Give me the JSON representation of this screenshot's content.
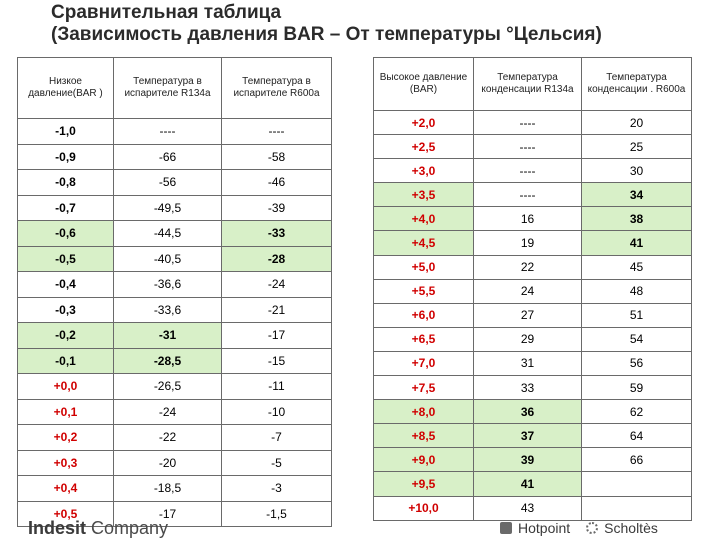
{
  "title": {
    "line1": "Сравнительная таблица",
    "line2": "(Зависимость давления BAR – От температуры °Цельсия)"
  },
  "left_table": {
    "headers": [
      "Низкое давление(BAR )",
      "Температура в испарителе R134a",
      "Температура в испарителе R600a"
    ],
    "rows": [
      {
        "p": "-1,0",
        "a": "----",
        "b": "----",
        "hl": ""
      },
      {
        "p": "-0,9",
        "a": "-66",
        "b": "-58",
        "hl": ""
      },
      {
        "p": "-0,8",
        "a": "-56",
        "b": "-46",
        "hl": ""
      },
      {
        "p": "-0,7",
        "a": "-49,5",
        "b": "-39",
        "hl": ""
      },
      {
        "p": "-0,6",
        "a": "-44,5",
        "b": "-33",
        "hl": "b"
      },
      {
        "p": "-0,5",
        "a": "-40,5",
        "b": "-28",
        "hl": "b"
      },
      {
        "p": "-0,4",
        "a": "-36,6",
        "b": "-24",
        "hl": ""
      },
      {
        "p": "-0,3",
        "a": "-33,6",
        "b": "-21",
        "hl": ""
      },
      {
        "p": "-0,2",
        "a": "-31",
        "b": "-17",
        "hl": "a"
      },
      {
        "p": "-0,1",
        "a": "-28,5",
        "b": "-15",
        "hl": "a"
      },
      {
        "p": "+0,0",
        "a": "-26,5",
        "b": "-11",
        "hl": ""
      },
      {
        "p": "+0,1",
        "a": "-24",
        "b": "-10",
        "hl": ""
      },
      {
        "p": "+0,2",
        "a": "-22",
        "b": "-7",
        "hl": ""
      },
      {
        "p": "+0,3",
        "a": "-20",
        "b": "-5",
        "hl": ""
      },
      {
        "p": "+0,4",
        "a": "-18,5",
        "b": "-3",
        "hl": ""
      },
      {
        "p": "+0,5",
        "a": "-17",
        "b": "-1,5",
        "hl": ""
      }
    ]
  },
  "right_table": {
    "headers": [
      "Высокое давление (BAR)",
      "Температура конденсации R134a",
      "Температура конденсации . R600a"
    ],
    "rows": [
      {
        "p": "+2,0",
        "a": "----",
        "b": "20",
        "hl": ""
      },
      {
        "p": "+2,5",
        "a": "----",
        "b": "25",
        "hl": ""
      },
      {
        "p": "+3,0",
        "a": "----",
        "b": "30",
        "hl": ""
      },
      {
        "p": "+3,5",
        "a": "----",
        "b": "34",
        "hl": "b"
      },
      {
        "p": "+4,0",
        "a": "16",
        "b": "38",
        "hl": "b"
      },
      {
        "p": "+4,5",
        "a": "19",
        "b": "41",
        "hl": "b"
      },
      {
        "p": "+5,0",
        "a": "22",
        "b": "45",
        "hl": ""
      },
      {
        "p": "+5,5",
        "a": "24",
        "b": "48",
        "hl": ""
      },
      {
        "p": "+6,0",
        "a": "27",
        "b": "51",
        "hl": ""
      },
      {
        "p": "+6,5",
        "a": "29",
        "b": "54",
        "hl": ""
      },
      {
        "p": "+7,0",
        "a": "31",
        "b": "56",
        "hl": ""
      },
      {
        "p": "+7,5",
        "a": "33",
        "b": "59",
        "hl": ""
      },
      {
        "p": "+8,0",
        "a": "36",
        "b": "62",
        "hl": "a"
      },
      {
        "p": "+8,5",
        "a": "37",
        "b": "64",
        "hl": "a"
      },
      {
        "p": "+9,0",
        "a": "39",
        "b": "66",
        "hl": "a"
      },
      {
        "p": "+9,5",
        "a": "41",
        "b": "",
        "hl": "a"
      },
      {
        "p": "+10,0",
        "a": "43",
        "b": "",
        "hl": ""
      }
    ]
  },
  "footer": {
    "brand1_bold": "Indesit",
    "brand1_rest": " Company",
    "brand2": "Hotpoint",
    "brand3": "Scholtès"
  },
  "colors": {
    "highlight": "#d8f0c8",
    "positive_pressure": "#d00000"
  }
}
